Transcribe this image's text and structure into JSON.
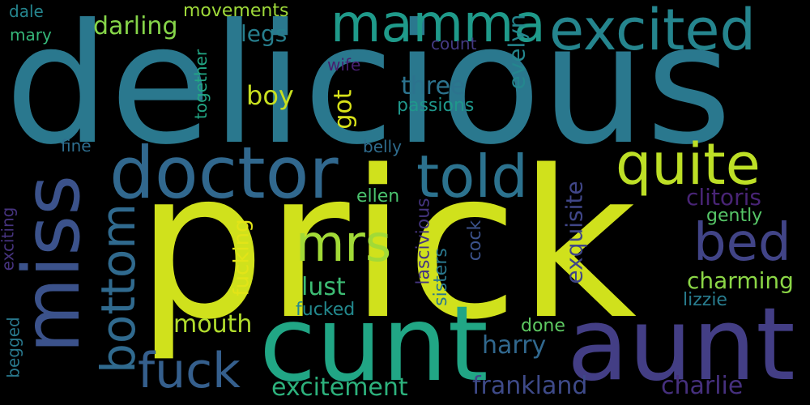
{
  "words": [
    {
      "text": "prick",
      "color": "#d0e11c"
    },
    {
      "text": "delicious",
      "color": "#2a788e"
    },
    {
      "text": "cunt",
      "color": "#21a685"
    },
    {
      "text": "aunt",
      "color": "#433e85"
    },
    {
      "text": "miss",
      "color": "#3b528b"
    },
    {
      "text": "doctor",
      "color": "#31688e"
    },
    {
      "text": "told",
      "color": "#2c728e"
    },
    {
      "text": "quite",
      "color": "#bddf26"
    },
    {
      "text": "excited",
      "color": "#25858e"
    },
    {
      "text": "mamma",
      "color": "#1f9a8a"
    },
    {
      "text": "bed",
      "color": "#414487"
    },
    {
      "text": "mrs",
      "color": "#a2da37"
    },
    {
      "text": "bottom",
      "color": "#306a8e"
    },
    {
      "text": "fuck",
      "color": "#355f8d"
    },
    {
      "text": "charming",
      "color": "#8bd646"
    },
    {
      "text": "clitoris",
      "color": "#482475"
    },
    {
      "text": "excitement",
      "color": "#2db27d"
    },
    {
      "text": "frankland",
      "color": "#3e4a89"
    },
    {
      "text": "charlie",
      "color": "#46307e"
    },
    {
      "text": "mouth",
      "color": "#b2dd2d"
    },
    {
      "text": "lust",
      "color": "#3dbc74"
    },
    {
      "text": "harry",
      "color": "#31688e"
    },
    {
      "text": "boy",
      "color": "#c8e020"
    },
    {
      "text": "three",
      "color": "#2c738e"
    },
    {
      "text": "passions",
      "color": "#1f978b"
    },
    {
      "text": "darling",
      "color": "#86d549"
    },
    {
      "text": "legs",
      "color": "#277f8e"
    },
    {
      "text": "evelyn",
      "color": "#24868e"
    },
    {
      "text": "got",
      "color": "#d8e219"
    },
    {
      "text": "exquisite",
      "color": "#404688"
    },
    {
      "text": "fucking",
      "color": "#e2e418"
    },
    {
      "text": "fucked",
      "color": "#23898e"
    },
    {
      "text": "lascivious",
      "color": "#453581"
    },
    {
      "text": "sisters",
      "color": "#2a788e"
    },
    {
      "text": "cock",
      "color": "#3b528b"
    },
    {
      "text": "ellen",
      "color": "#4ac16d"
    },
    {
      "text": "gently",
      "color": "#56c667"
    },
    {
      "text": "lizzie",
      "color": "#287c8e"
    },
    {
      "text": "done",
      "color": "#5ec962"
    },
    {
      "text": "movements",
      "color": "#9fda3a"
    },
    {
      "text": "dale",
      "color": "#25858e"
    },
    {
      "text": "mary",
      "color": "#35b779"
    },
    {
      "text": "count",
      "color": "#443a83"
    },
    {
      "text": "wife",
      "color": "#481f70"
    },
    {
      "text": "together",
      "color": "#22a785"
    },
    {
      "text": "fine",
      "color": "#2e6e8e"
    },
    {
      "text": "belly",
      "color": "#2f6c8e"
    },
    {
      "text": "exciting",
      "color": "#46337e"
    },
    {
      "text": "begged",
      "color": "#29798e"
    }
  ]
}
